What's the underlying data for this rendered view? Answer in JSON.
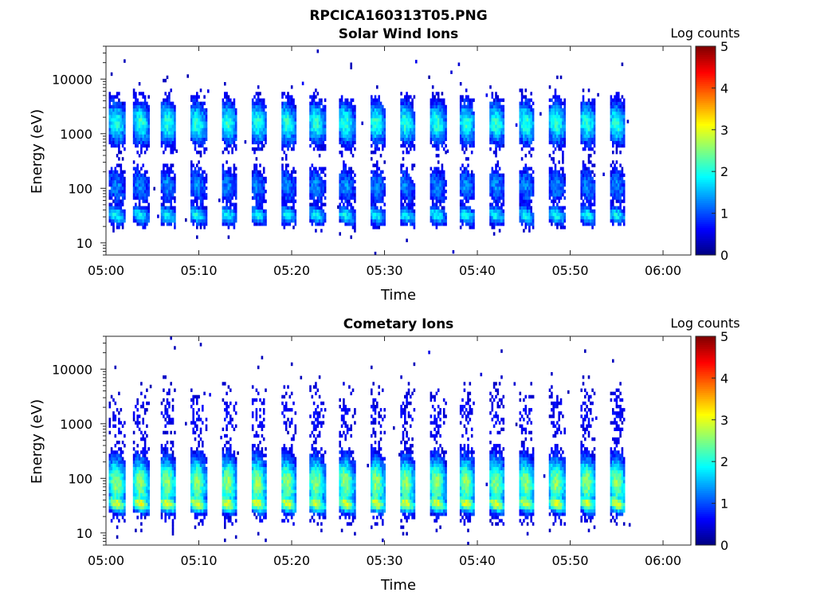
{
  "figure_title": "RPCICA160313T05.PNG",
  "colorscale": [
    "#00007f",
    "#0000ff",
    "#007fff",
    "#00ffff",
    "#7fff7f",
    "#ffff00",
    "#ff7f00",
    "#ff0000",
    "#7f0000"
  ],
  "chart_data": [
    {
      "type": "heatmap",
      "title": "Solar Wind Ions",
      "xlabel": "Time",
      "ylabel": "Energy (eV)",
      "x_ticks": [
        "05:00",
        "05:10",
        "05:20",
        "05:30",
        "05:40",
        "05:50",
        "06:00"
      ],
      "x_tick_minutes": [
        0,
        10,
        20,
        30,
        40,
        50,
        60
      ],
      "xlim_minutes": [
        0,
        63
      ],
      "y_scale": "log",
      "y_ticks": [
        "10",
        "100",
        "1000",
        "10000"
      ],
      "y_tick_values": [
        10,
        100,
        1000,
        10000
      ],
      "ylim": [
        6,
        40000
      ],
      "colorbar": {
        "label": "Log counts",
        "range": [
          0,
          5
        ],
        "ticks": [
          "0",
          "1",
          "2",
          "3",
          "4",
          "5"
        ]
      },
      "sweep_start_minutes": [
        0.3,
        2.9,
        5.8,
        9.0,
        12.3,
        15.5,
        18.7,
        21.8,
        25.0,
        28.3,
        31.5,
        34.8,
        38.0,
        41.2,
        44.4,
        47.7,
        51.0,
        54.2
      ],
      "data_end_minute": 56.5,
      "clusters": [
        {
          "energy_center": 1700,
          "log_spread": 0.28,
          "peak": 2.1
        },
        {
          "energy_center": 120,
          "log_spread": 0.25,
          "peak": 1.3
        },
        {
          "energy_center": 35,
          "log_spread": 0.12,
          "peak": 1.9
        }
      ]
    },
    {
      "type": "heatmap",
      "title": "Cometary Ions",
      "xlabel": "Time",
      "ylabel": "Energy (eV)",
      "x_ticks": [
        "05:00",
        "05:10",
        "05:20",
        "05:30",
        "05:40",
        "05:50",
        "06:00"
      ],
      "x_tick_minutes": [
        0,
        10,
        20,
        30,
        40,
        50,
        60
      ],
      "xlim_minutes": [
        0,
        63
      ],
      "y_scale": "log",
      "y_ticks": [
        "10",
        "100",
        "1000",
        "10000"
      ],
      "y_tick_values": [
        10,
        100,
        1000,
        10000
      ],
      "ylim": [
        6,
        40000
      ],
      "colorbar": {
        "label": "Log counts",
        "range": [
          0,
          5
        ],
        "ticks": [
          "0",
          "1",
          "2",
          "3",
          "4",
          "5"
        ]
      },
      "sweep_start_minutes": [
        0.3,
        2.9,
        5.8,
        9.0,
        12.3,
        15.5,
        18.7,
        21.8,
        25.0,
        28.3,
        31.5,
        34.8,
        38.0,
        41.2,
        44.4,
        47.7,
        51.0,
        54.2
      ],
      "data_end_minute": 56.5,
      "clusters": [
        {
          "energy_center": 90,
          "log_spread": 0.35,
          "peak": 2.6
        },
        {
          "energy_center": 38,
          "log_spread": 0.12,
          "peak": 3.0
        },
        {
          "energy_center": 1500,
          "log_spread": 0.4,
          "peak": 0.5
        }
      ]
    }
  ]
}
